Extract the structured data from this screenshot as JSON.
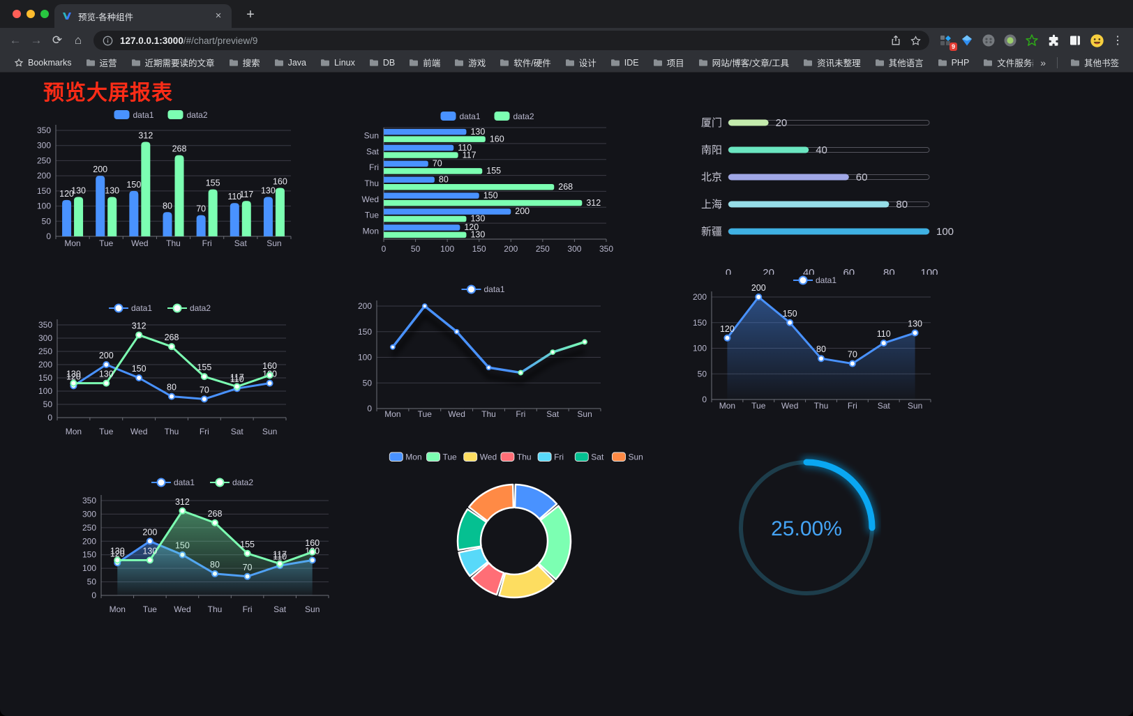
{
  "browser": {
    "tab_title": "预览-各种组件",
    "url_host": "127.0.0.1:3000",
    "url_path": "/#/chart/preview/9",
    "bookmarks_label": "Bookmarks",
    "bookmarks": [
      "运营",
      "近期需要读的文章",
      "搜索",
      "Java",
      "Linux",
      "DB",
      "前端",
      "游戏",
      "软件/硬件",
      "设计",
      "IDE",
      "项目",
      "网站/博客/文章/工具",
      "资讯未整理",
      "其他语言",
      "PHP",
      "文件服务器"
    ],
    "other_bookmarks": "其他书签",
    "extension_badge": "9",
    "glyphs": {
      "back": "←",
      "forward": "→",
      "reload": "⟳",
      "home": "⌂",
      "close_tab": "×",
      "new_tab": "+",
      "menu": "⋮",
      "overflow": "»"
    }
  },
  "page": {
    "title": "预览大屏报表",
    "title_color": "#fb2c17"
  },
  "chart_data": [
    {
      "id": "c1",
      "type": "bar",
      "title": "",
      "categories": [
        "Mon",
        "Tue",
        "Wed",
        "Thu",
        "Fri",
        "Sat",
        "Sun"
      ],
      "series": [
        {
          "name": "data1",
          "color": "#4992ff",
          "values": [
            120,
            200,
            150,
            80,
            70,
            110,
            130
          ]
        },
        {
          "name": "data2",
          "color": "#7cffb2",
          "values": [
            130,
            130,
            312,
            268,
            155,
            117,
            160
          ]
        }
      ],
      "ylim": [
        0,
        350
      ],
      "yticks": [
        0,
        50,
        100,
        150,
        200,
        250,
        300,
        350
      ],
      "legend": [
        "data1",
        "data2"
      ],
      "legend_position": "top",
      "grid": true
    },
    {
      "id": "c2",
      "type": "bar-horizontal",
      "title": "",
      "categories": [
        "Mon",
        "Tue",
        "Wed",
        "Thu",
        "Fri",
        "Sat",
        "Sun"
      ],
      "display_top_to_bottom": [
        "Sun",
        "Sat",
        "Fri",
        "Thu",
        "Wed",
        "Tue",
        "Mon"
      ],
      "series": [
        {
          "name": "data1",
          "color": "#4992ff",
          "values": [
            120,
            200,
            150,
            80,
            70,
            110,
            130
          ]
        },
        {
          "name": "data2",
          "color": "#7cffb2",
          "values": [
            130,
            130,
            312,
            268,
            155,
            117,
            160
          ]
        }
      ],
      "xlim": [
        0,
        350
      ],
      "xticks": [
        0,
        50,
        100,
        150,
        200,
        250,
        300,
        350
      ],
      "legend": [
        "data1",
        "data2"
      ],
      "legend_position": "top",
      "grid": true
    },
    {
      "id": "c3",
      "type": "progress-bar-list",
      "title": "",
      "items": [
        {
          "label": "厦门",
          "value": 20,
          "color": "#c4ebad"
        },
        {
          "label": "南阳",
          "value": 40,
          "color": "#6be6c1"
        },
        {
          "label": "北京",
          "value": 60,
          "color": "#a0a7e6"
        },
        {
          "label": "上海",
          "value": 80,
          "color": "#96dee8"
        },
        {
          "label": "新疆",
          "value": 100,
          "color": "#3fb1e3"
        }
      ],
      "xlim": [
        0,
        100
      ],
      "xticks": [
        0,
        20,
        40,
        60,
        80,
        100
      ]
    },
    {
      "id": "c4",
      "type": "line",
      "title": "",
      "categories": [
        "Mon",
        "Tue",
        "Wed",
        "Thu",
        "Fri",
        "Sat",
        "Sun"
      ],
      "series": [
        {
          "name": "data1",
          "color": "#4992ff",
          "values": [
            120,
            200,
            150,
            80,
            70,
            110,
            130
          ]
        },
        {
          "name": "data2",
          "color": "#7cffb2",
          "values": [
            130,
            130,
            312,
            268,
            155,
            117,
            160
          ]
        }
      ],
      "ylim": [
        0,
        350
      ],
      "yticks": [
        0,
        50,
        100,
        150,
        200,
        250,
        300,
        350
      ],
      "legend": [
        "data1",
        "data2"
      ],
      "legend_position": "top",
      "show_point_labels": true,
      "grid": true
    },
    {
      "id": "c5",
      "type": "line-gradient",
      "title": "",
      "categories": [
        "Mon",
        "Tue",
        "Wed",
        "Thu",
        "Fri",
        "Sat",
        "Sun"
      ],
      "series": [
        {
          "name": "data1",
          "gradient": [
            "#4992ff",
            "#7cffb2"
          ],
          "values": [
            120,
            200,
            150,
            80,
            70,
            110,
            130
          ]
        }
      ],
      "ylim": [
        0,
        200
      ],
      "yticks": [
        0,
        50,
        100,
        150,
        200
      ],
      "legend": [
        "data1"
      ],
      "legend_position": "top",
      "grid": true
    },
    {
      "id": "c6",
      "type": "area",
      "title": "",
      "categories": [
        "Mon",
        "Tue",
        "Wed",
        "Thu",
        "Fri",
        "Sat",
        "Sun"
      ],
      "series": [
        {
          "name": "data1",
          "color": "#4992ff",
          "values": [
            120,
            200,
            150,
            80,
            70,
            110,
            130
          ]
        }
      ],
      "ylim": [
        0,
        200
      ],
      "yticks": [
        0,
        50,
        100,
        150,
        200
      ],
      "legend": [
        "data1"
      ],
      "legend_position": "top",
      "show_point_labels": true,
      "grid": true
    },
    {
      "id": "c7",
      "type": "area",
      "title": "",
      "categories": [
        "Mon",
        "Tue",
        "Wed",
        "Thu",
        "Fri",
        "Sat",
        "Sun"
      ],
      "series": [
        {
          "name": "data1",
          "color": "#4992ff",
          "values": [
            120,
            200,
            150,
            80,
            70,
            110,
            130
          ]
        },
        {
          "name": "data2",
          "color": "#7cffb2",
          "values": [
            130,
            130,
            312,
            268,
            155,
            117,
            160
          ]
        }
      ],
      "ylim": [
        0,
        350
      ],
      "yticks": [
        0,
        50,
        100,
        150,
        200,
        250,
        300,
        350
      ],
      "legend": [
        "data1",
        "data2"
      ],
      "legend_position": "top",
      "show_point_labels": true,
      "grid": true
    },
    {
      "id": "c8",
      "type": "pie",
      "title": "",
      "categories": [
        "Mon",
        "Tue",
        "Wed",
        "Thu",
        "Fri",
        "Sat",
        "Sun"
      ],
      "values": [
        120,
        200,
        150,
        80,
        70,
        110,
        130
      ],
      "colors": [
        "#4992ff",
        "#7cffb2",
        "#fddd60",
        "#ff6e76",
        "#58d9f9",
        "#05c091",
        "#ff8a45"
      ],
      "legend_position": "top",
      "donut": true
    },
    {
      "id": "c9",
      "type": "gauge-ring",
      "title": "",
      "label": "25.00%",
      "percent": 25,
      "color": "#0aa7f2",
      "track_color": "#1d3d4b",
      "text_color": "#45a4f5"
    }
  ]
}
